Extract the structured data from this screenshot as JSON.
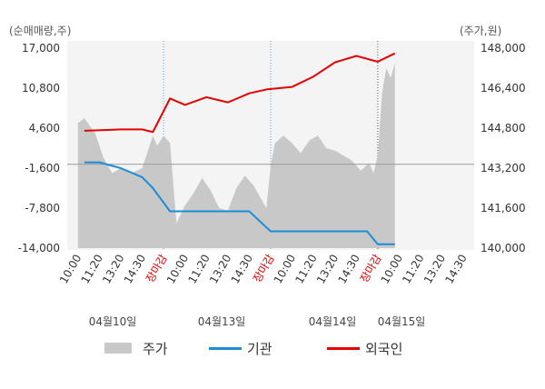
{
  "chart_data": {
    "type": "line",
    "left_unit": "(순매매량,주)",
    "right_unit": "(주가,원)",
    "left_ticks": [
      "17,000",
      "10,800",
      "4,600",
      "-1,600",
      "-7,800",
      "-14,000"
    ],
    "left_ylim": [
      -14000,
      17000
    ],
    "right_ticks": [
      "148,000",
      "146,400",
      "144,800",
      "143,200",
      "141,600",
      "140,000"
    ],
    "right_ylim": [
      140000,
      148000
    ],
    "x_ticks": [
      {
        "label": "10:00",
        "color": "#333333"
      },
      {
        "label": "11:20",
        "color": "#333333"
      },
      {
        "label": "13:20",
        "color": "#333333"
      },
      {
        "label": "14:30",
        "color": "#333333"
      },
      {
        "label": "장마감",
        "color": "#e60000"
      },
      {
        "label": "10:00",
        "color": "#333333"
      },
      {
        "label": "11:20",
        "color": "#333333"
      },
      {
        "label": "13:20",
        "color": "#333333"
      },
      {
        "label": "14:30",
        "color": "#333333"
      },
      {
        "label": "장마감",
        "color": "#e60000"
      },
      {
        "label": "10:00",
        "color": "#333333"
      },
      {
        "label": "11:20",
        "color": "#333333"
      },
      {
        "label": "13:20",
        "color": "#333333"
      },
      {
        "label": "14:30",
        "color": "#333333"
      },
      {
        "label": "장마감",
        "color": "#e60000"
      },
      {
        "label": "10:00",
        "color": "#333333"
      },
      {
        "label": "11:20",
        "color": "#333333"
      },
      {
        "label": "13:20",
        "color": "#333333"
      },
      {
        "label": "14:30",
        "color": "#333333"
      }
    ],
    "dates": [
      "04월10일",
      "04월13일",
      "04월14일",
      "04월15일"
    ],
    "legend": [
      {
        "label": "주가",
        "kind": "area",
        "color": "#c8c8c8"
      },
      {
        "label": "기관",
        "kind": "line",
        "color": "#1a8cd8"
      },
      {
        "label": "외국인",
        "kind": "line",
        "color": "#e60000"
      }
    ],
    "session_markers": [
      {
        "x": 4,
        "color": "#5a9bd5"
      },
      {
        "x": 9,
        "color": "#5a9bd5"
      },
      {
        "x": 14,
        "color": "#555555"
      }
    ],
    "series": [
      {
        "name": "외국인",
        "color": "#e60000",
        "axis": "left",
        "x": [
          0.3,
          2.0,
          3.0,
          3.5,
          4.3,
          5.0,
          6.0,
          7.0,
          8.0,
          8.8,
          10.0,
          11.0,
          12.0,
          13.0,
          14.0,
          14.8
        ],
        "values": [
          4200,
          4400,
          4400,
          4000,
          9200,
          8200,
          9400,
          8600,
          10000,
          10600,
          11000,
          12600,
          14800,
          15800,
          14900,
          16200
        ]
      },
      {
        "name": "기관",
        "color": "#1a8cd8",
        "axis": "left",
        "x": [
          0.3,
          1.0,
          2.0,
          3.0,
          3.5,
          4.3,
          5.0,
          6.0,
          7.0,
          8.0,
          9.0,
          10.0,
          11.0,
          12.0,
          12.5,
          13.5,
          14.0,
          14.8
        ],
        "values": [
          -700,
          -700,
          -1600,
          -3000,
          -4700,
          -8300,
          -8300,
          -8300,
          -8300,
          -8300,
          -11400,
          -11400,
          -11400,
          -11400,
          -11400,
          -11400,
          -13400,
          -13400
        ]
      },
      {
        "name": "주가",
        "color": "#c8c8c8",
        "axis": "right",
        "x": [
          0.0,
          0.3,
          0.8,
          1.2,
          1.6,
          2.0,
          2.5,
          3.0,
          3.5,
          3.7,
          4.0,
          4.3,
          4.6,
          5.0,
          5.4,
          5.8,
          6.2,
          6.6,
          7.0,
          7.4,
          7.8,
          8.2,
          8.6,
          8.8,
          9.0,
          9.2,
          9.6,
          10.0,
          10.4,
          10.8,
          11.2,
          11.6,
          12.0,
          12.4,
          12.8,
          13.2,
          13.6,
          13.8,
          14.0,
          14.2,
          14.4,
          14.6,
          14.8
        ],
        "values": [
          145000,
          145200,
          144600,
          143600,
          143000,
          143200,
          143000,
          143200,
          144500,
          144100,
          144500,
          144200,
          141000,
          141700,
          142200,
          142800,
          142300,
          141600,
          141500,
          142400,
          142900,
          142500,
          141900,
          141600,
          143300,
          144200,
          144500,
          144200,
          143800,
          144300,
          144500,
          144000,
          143900,
          143700,
          143500,
          143100,
          143400,
          143000,
          143700,
          146200,
          147200,
          146800,
          147400
        ]
      }
    ]
  }
}
